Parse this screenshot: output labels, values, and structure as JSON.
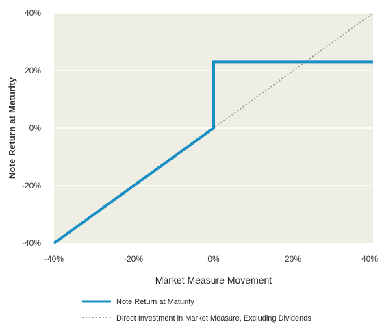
{
  "chart_data": {
    "type": "line",
    "xlabel": "Market Measure Movement",
    "ylabel": "Note Return at Maturity",
    "xlim": [
      -40,
      40
    ],
    "ylim": [
      -40,
      40
    ],
    "x_ticks": [
      "-40%",
      "-20%",
      "0%",
      "20%",
      "40%"
    ],
    "y_ticks": [
      "40%",
      "20%",
      "0%",
      "-20%",
      "-40%"
    ],
    "grid": "horizontal",
    "legend_position": "bottom",
    "series": [
      {
        "name": "Note Return at Maturity",
        "color": "#1a8fc4",
        "style": "solid",
        "points": [
          [
            -40,
            -40
          ],
          [
            0,
            0
          ],
          [
            0,
            23
          ],
          [
            40,
            23
          ]
        ]
      },
      {
        "name": "Direct Investment in Market Measure, Excluding Dividends",
        "color": "#9a9a86",
        "style": "dotted",
        "points": [
          [
            -40,
            -40
          ],
          [
            40,
            40
          ]
        ]
      }
    ],
    "plot_background": "#eeeee4",
    "gridline_color": "#ffffff"
  }
}
